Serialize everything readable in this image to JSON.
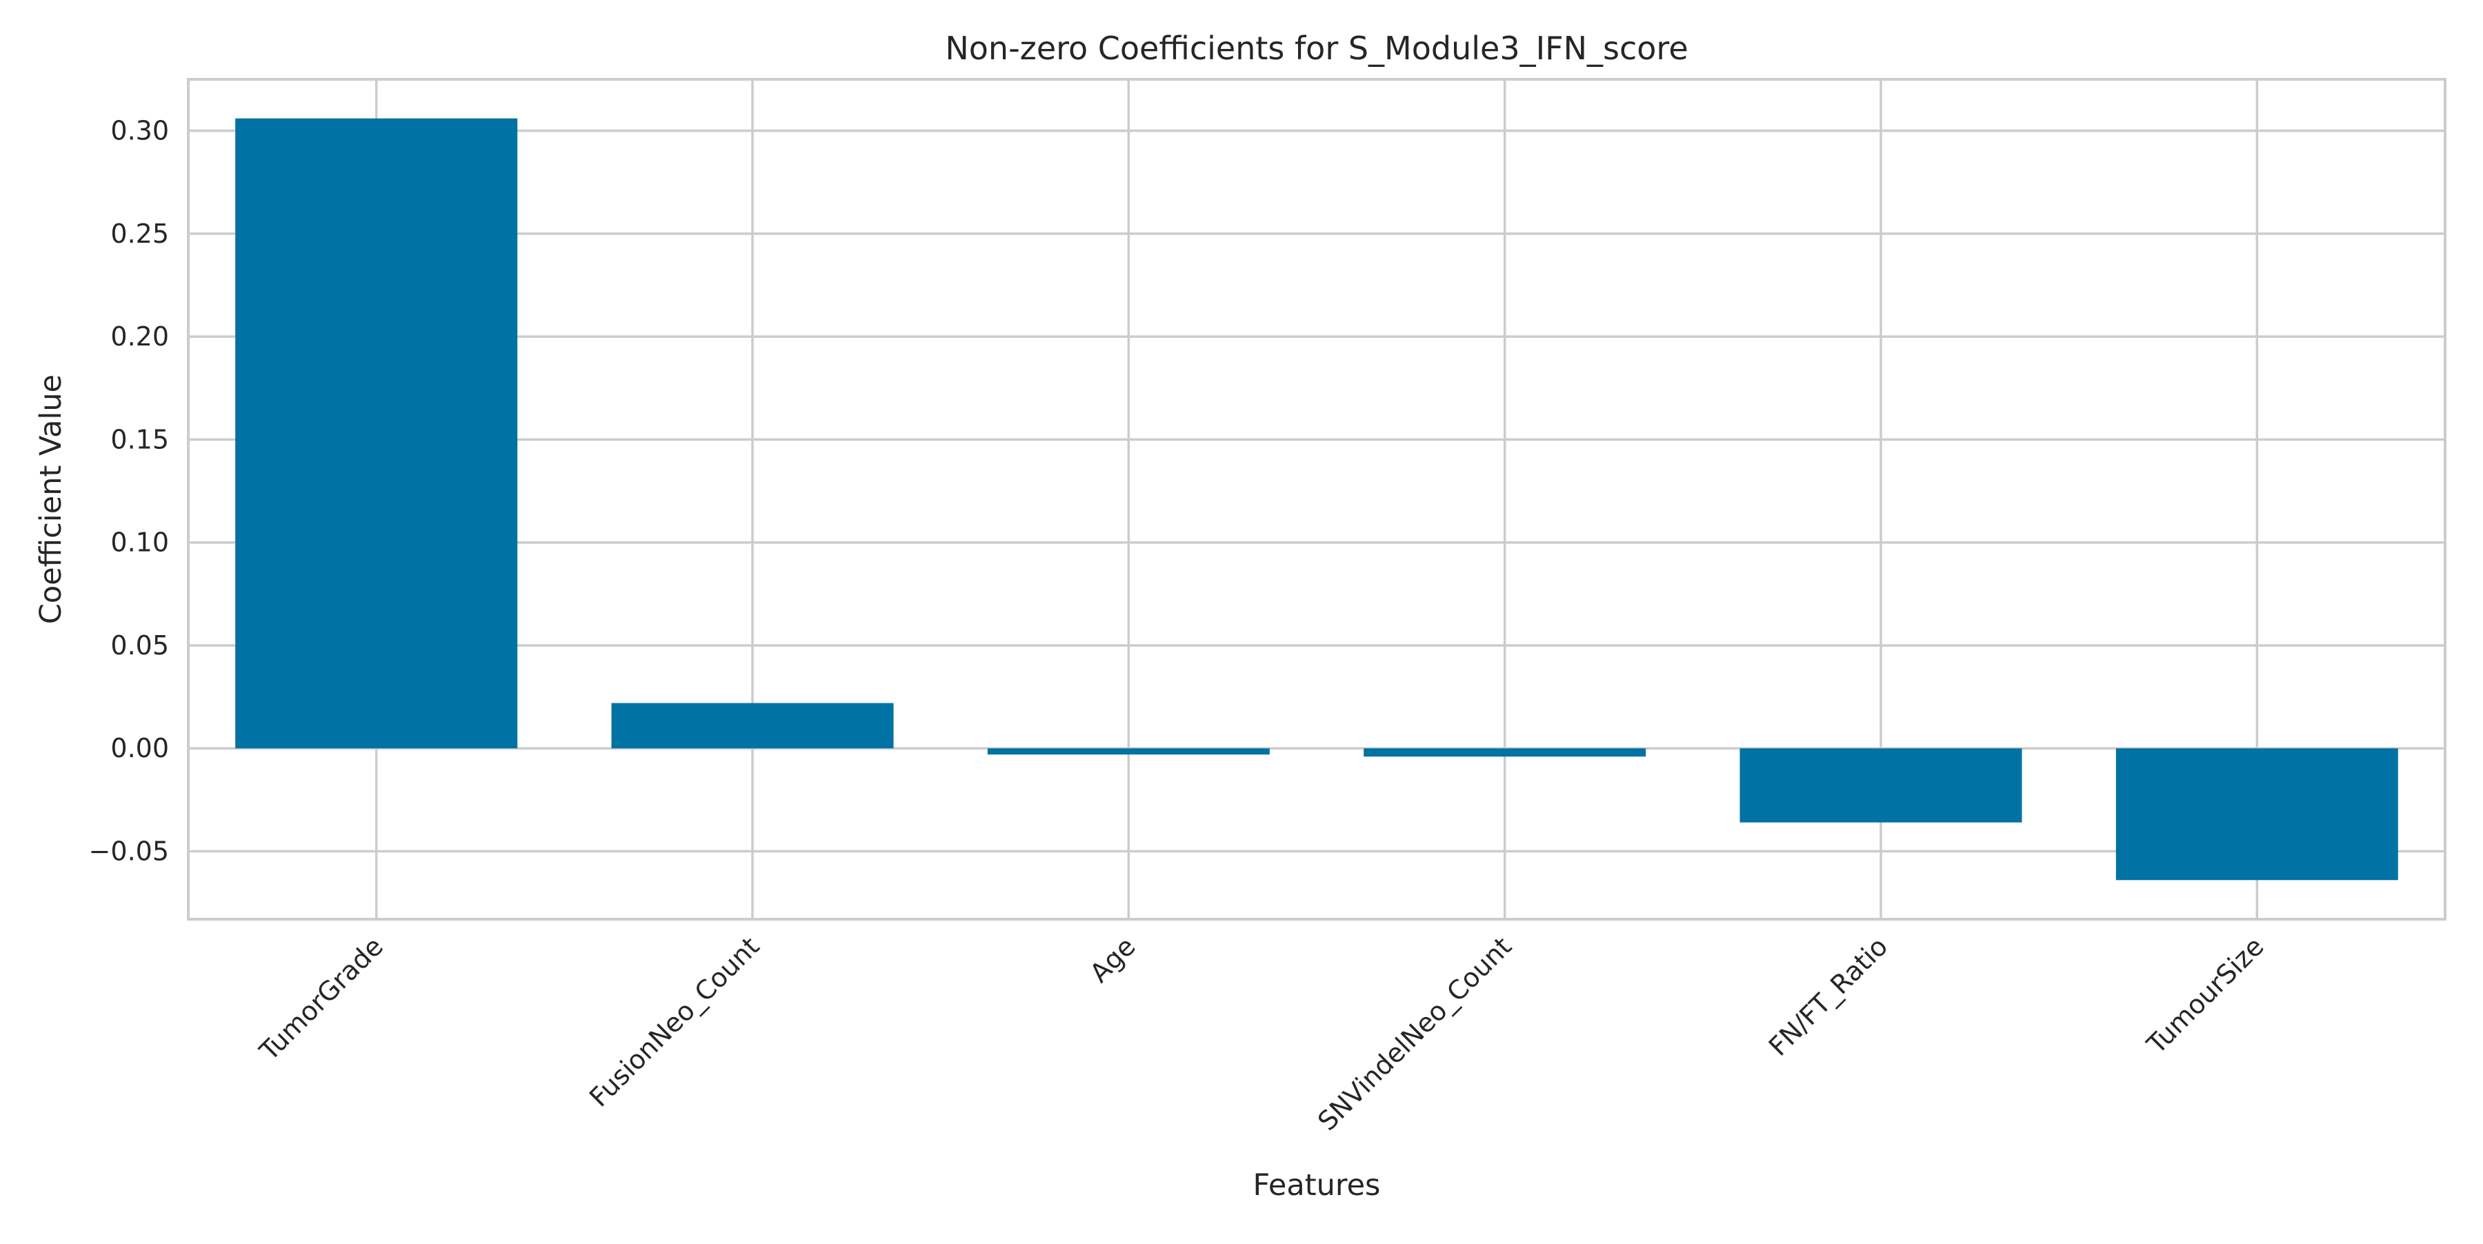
{
  "chart_data": {
    "type": "bar",
    "title": "Non-zero Coefficients for S_Module3_IFN_score",
    "xlabel": "Features",
    "ylabel": "Coefficient Value",
    "categories": [
      "TumorGrade",
      "FusionNeo_Count",
      "Age",
      "SNVindelNeo_Count",
      "FN/FT_Ratio",
      "TumourSize"
    ],
    "values": [
      0.306,
      0.022,
      -0.003,
      -0.004,
      -0.036,
      -0.064
    ],
    "ylim": [
      -0.083,
      0.325
    ],
    "yticks": [
      -0.05,
      0.0,
      0.05,
      0.1,
      0.15,
      0.2,
      0.25,
      0.3
    ],
    "ytick_labels": [
      "−0.05",
      "0.00",
      "0.05",
      "0.10",
      "0.15",
      "0.20",
      "0.25",
      "0.30"
    ],
    "grid": true,
    "legend": "none",
    "colors": {
      "bar": "#0072a3",
      "grid": "#cccccc",
      "spine": "#cccccc",
      "text": "#262626"
    }
  }
}
